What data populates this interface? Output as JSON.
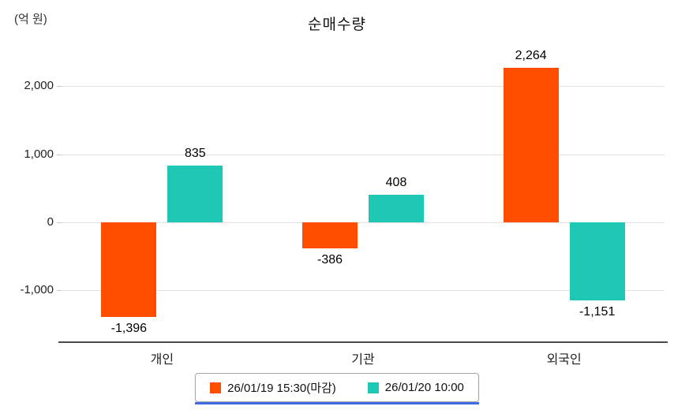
{
  "chart": {
    "title": "순매수량",
    "unit_label": "(억 원)"
  },
  "chart_data": {
    "type": "bar",
    "title": "순매수량",
    "ylabel": "(억 원)",
    "xlabel": "",
    "categories": [
      "개인",
      "기관",
      "외국인"
    ],
    "series": [
      {
        "name": "26/01/19 15:30(마감)",
        "color": "#ff4e00",
        "values": [
          -1396,
          -386,
          2264
        ]
      },
      {
        "name": "26/01/20 10:00",
        "color": "#1ec8b4",
        "values": [
          835,
          408,
          -1151
        ]
      }
    ],
    "value_labels": [
      "-1,396",
      "835",
      "-386",
      "408",
      "2,264",
      "-1,151"
    ],
    "yticks": [
      2000,
      1000,
      0,
      -1000
    ],
    "ytick_labels": [
      "2,000",
      "1,000",
      "0",
      "-1,000"
    ],
    "ylim": [
      -1750,
      2500
    ],
    "grid": true,
    "legend_position": "bottom",
    "legend_underline_color": "#4169e1"
  }
}
